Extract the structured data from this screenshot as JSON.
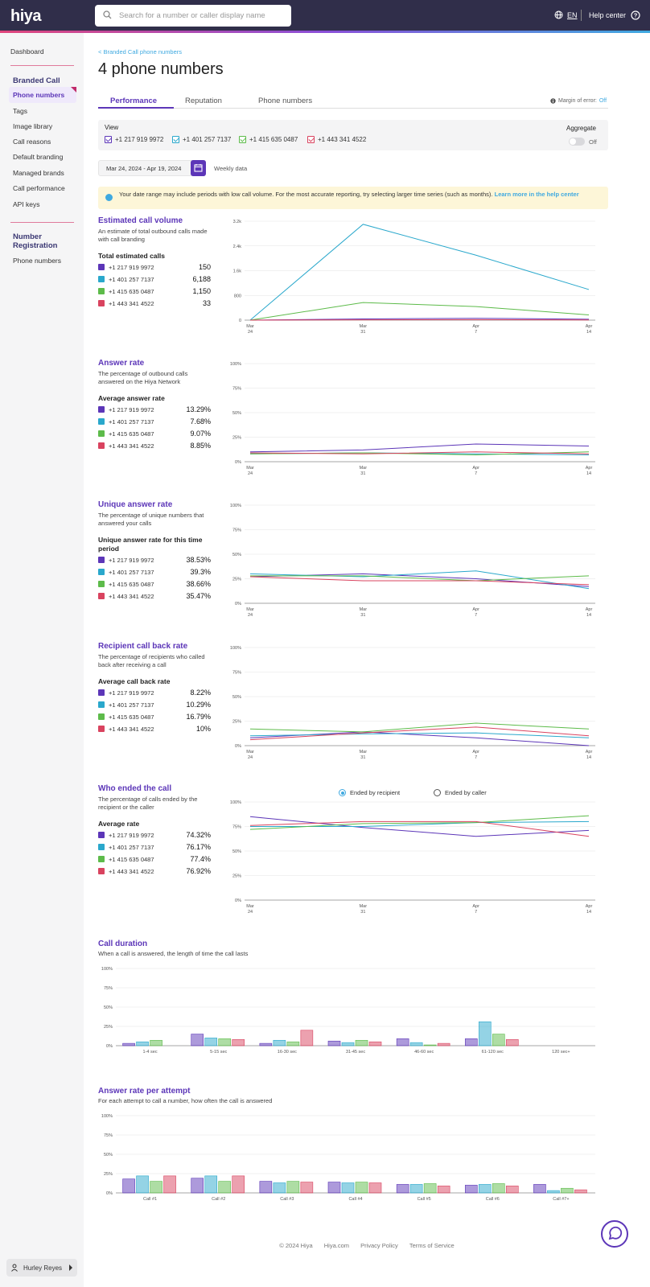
{
  "header": {
    "logo": "hiya",
    "search_placeholder": "Search for a number or caller display name",
    "lang": "EN",
    "help": "Help center"
  },
  "sidebar": {
    "dashboard": "Dashboard",
    "branded_call": "Branded Call",
    "items": [
      "Phone numbers",
      "Tags",
      "Image library",
      "Call reasons",
      "Default branding",
      "Managed brands",
      "Call performance",
      "API keys"
    ],
    "number_registration": "Number Registration",
    "nr_items": [
      "Phone numbers"
    ],
    "user": "Hurley Reyes"
  },
  "page": {
    "breadcrumb": "< Branded Call phone numbers",
    "title": "4 phone numbers",
    "tabs": [
      "Performance",
      "Reputation",
      "Phone numbers"
    ],
    "margin_label": "Margin of error:",
    "margin_value": "Off",
    "view_label": "View",
    "aggregate_label": "Aggregate",
    "aggregate_state": "Off",
    "date_range": "Mar 24, 2024 - Apr 19, 2024",
    "granularity": "Weekly data",
    "alert_text": "Your date range may include periods with low call volume. For the most accurate reporting, try selecting larger time series (such as months).",
    "alert_link": "Learn more in the help center",
    "footer": [
      "© 2024 Hiya",
      "Hiya.com",
      "Privacy Policy",
      "Terms of Service"
    ]
  },
  "numbers": [
    "+1 217 919 9972",
    "+1 401 257 7137",
    "+1 415 635 0487",
    "+1 443 341 4522"
  ],
  "colors": {
    "purple": "#5c36b8",
    "blue": "#2aa8cc",
    "green": "#5dbb4a",
    "red": "#d9435f",
    "accent": "#5c36b8"
  },
  "sections": [
    {
      "title": "Estimated call volume",
      "desc": "An estimate of total outbound calls made with call branding",
      "sub": "Total estimated calls",
      "values": [
        "150",
        "6,188",
        "1,150",
        "33"
      ]
    },
    {
      "title": "Answer rate",
      "desc": "The percentage of outbound calls answered on the Hiya Network",
      "sub": "Average answer rate",
      "values": [
        "13.29%",
        "7.68%",
        "9.07%",
        "8.85%"
      ]
    },
    {
      "title": "Unique answer rate",
      "desc": "The percentage of unique numbers that answered your calls",
      "sub": "Unique answer rate for this time period",
      "values": [
        "38.53%",
        "39.3%",
        "38.66%",
        "35.47%"
      ]
    },
    {
      "title": "Recipient call back rate",
      "desc": "The percentage of recipients who called back after receiving a call",
      "sub": "Average call back rate",
      "values": [
        "8.22%",
        "10.29%",
        "16.79%",
        "10%"
      ]
    },
    {
      "title": "Who ended the call",
      "desc": "The percentage of calls ended by the recipient or the caller",
      "sub": "Average rate",
      "values": [
        "74.32%",
        "76.17%",
        "77.4%",
        "76.92%"
      ]
    }
  ],
  "radio": {
    "option1": "Ended by recipient",
    "option2": "Ended by caller"
  },
  "duration": {
    "title": "Call duration",
    "desc": "When a call is answered, the length of time the call lasts"
  },
  "attempt": {
    "title": "Answer rate per attempt",
    "desc": "For each attempt to call a number, how often the call is answered"
  },
  "chart_data": [
    {
      "type": "line",
      "title": "Estimated call volume",
      "x": [
        "Mar 24",
        "Mar 31",
        "Apr 7",
        "Apr 14"
      ],
      "yticks": [
        "0",
        "800",
        "1.6k",
        "2.4k",
        "3.2k"
      ],
      "ylim": [
        0,
        3200
      ],
      "series": [
        {
          "name": "+1 217 919 9972",
          "values": [
            0,
            40,
            60,
            30
          ]
        },
        {
          "name": "+1 401 257 7137",
          "values": [
            0,
            3100,
            2100,
            990
          ]
        },
        {
          "name": "+1 415 635 0487",
          "values": [
            0,
            570,
            440,
            170
          ]
        },
        {
          "name": "+1 443 341 4522",
          "values": [
            0,
            10,
            15,
            8
          ]
        }
      ]
    },
    {
      "type": "line",
      "title": "Answer rate",
      "x": [
        "Mar 24",
        "Mar 31",
        "Apr 7",
        "Apr 14"
      ],
      "yticks": [
        "0%",
        "25%",
        "50%",
        "75%",
        "100%"
      ],
      "ylim": [
        0,
        100
      ],
      "series": [
        {
          "name": "+1 217 919 9972",
          "values": [
            10,
            12,
            18,
            16
          ]
        },
        {
          "name": "+1 401 257 7137",
          "values": [
            8,
            9,
            8,
            7
          ]
        },
        {
          "name": "+1 415 635 0487",
          "values": [
            8,
            9,
            7,
            10
          ]
        },
        {
          "name": "+1 443 341 4522",
          "values": [
            9,
            8,
            10,
            8
          ]
        }
      ]
    },
    {
      "type": "line",
      "title": "Unique answer rate",
      "x": [
        "Mar 24",
        "Mar 31",
        "Apr 7",
        "Apr 14"
      ],
      "yticks": [
        "0%",
        "25%",
        "50%",
        "75%",
        "100%"
      ],
      "ylim": [
        0,
        100
      ],
      "series": [
        {
          "name": "+1 217 919 9972",
          "values": [
            27,
            30,
            25,
            17
          ]
        },
        {
          "name": "+1 401 257 7137",
          "values": [
            30,
            27,
            33,
            15
          ]
        },
        {
          "name": "+1 415 635 0487",
          "values": [
            28,
            28,
            23,
            28
          ]
        },
        {
          "name": "+1 443 341 4522",
          "values": [
            27,
            23,
            23,
            19
          ]
        }
      ]
    },
    {
      "type": "line",
      "title": "Recipient call back rate",
      "x": [
        "Mar 24",
        "Mar 31",
        "Apr 7",
        "Apr 14"
      ],
      "yticks": [
        "0%",
        "25%",
        "50%",
        "75%",
        "100%"
      ],
      "ylim": [
        0,
        100
      ],
      "series": [
        {
          "name": "+1 217 919 9972",
          "values": [
            8,
            14,
            8,
            0
          ]
        },
        {
          "name": "+1 401 257 7137",
          "values": [
            10,
            12,
            13,
            8
          ]
        },
        {
          "name": "+1 415 635 0487",
          "values": [
            17,
            14,
            23,
            17
          ]
        },
        {
          "name": "+1 443 341 4522",
          "values": [
            6,
            13,
            19,
            10
          ]
        }
      ]
    },
    {
      "type": "line",
      "title": "Who ended the call",
      "x": [
        "Mar 24",
        "Mar 31",
        "Apr 7",
        "Apr 14"
      ],
      "yticks": [
        "0%",
        "25%",
        "50%",
        "75%",
        "100%"
      ],
      "ylim": [
        0,
        100
      ],
      "series": [
        {
          "name": "+1 217 919 9972",
          "values": [
            85,
            74,
            65,
            71
          ]
        },
        {
          "name": "+1 401 257 7137",
          "values": [
            75,
            75,
            79,
            80
          ]
        },
        {
          "name": "+1 415 635 0487",
          "values": [
            72,
            78,
            79,
            86
          ]
        },
        {
          "name": "+1 443 341 4522",
          "values": [
            76,
            80,
            80,
            65
          ]
        }
      ]
    },
    {
      "type": "bar",
      "title": "Call duration",
      "categories": [
        "1-4 sec",
        "5-15 sec",
        "16-30 sec",
        "31-45 sec",
        "46-60 sec",
        "61-120 sec",
        "120 sec+"
      ],
      "yticks": [
        "0%",
        "25%",
        "50%",
        "75%",
        "100%"
      ],
      "ylim": [
        0,
        100
      ],
      "series": [
        {
          "name": "+1 217 919 9972",
          "values": [
            3,
            15,
            3,
            6,
            9,
            9,
            0
          ]
        },
        {
          "name": "+1 401 257 7137",
          "values": [
            5,
            10,
            7,
            4,
            4,
            31,
            0
          ]
        },
        {
          "name": "+1 415 635 0487",
          "values": [
            7,
            9,
            5,
            7,
            1,
            15,
            0
          ]
        },
        {
          "name": "+1 443 341 4522",
          "values": [
            0,
            8,
            20,
            5,
            3,
            8,
            0
          ]
        }
      ]
    },
    {
      "type": "bar",
      "title": "Answer rate per attempt",
      "categories": [
        "Call #1",
        "Call #2",
        "Call #3",
        "Call #4",
        "Call #5",
        "Call #6",
        "Call #7+"
      ],
      "yticks": [
        "0%",
        "25%",
        "50%",
        "75%",
        "100%"
      ],
      "ylim": [
        0,
        100
      ],
      "series": [
        {
          "name": "+1 217 919 9972",
          "values": [
            18,
            19,
            15,
            14,
            11,
            10,
            11
          ]
        },
        {
          "name": "+1 401 257 7137",
          "values": [
            22,
            22,
            13,
            13,
            11,
            11,
            3
          ]
        },
        {
          "name": "+1 415 635 0487",
          "values": [
            15,
            15,
            15,
            14,
            12,
            12,
            6
          ]
        },
        {
          "name": "+1 443 341 4522",
          "values": [
            22,
            22,
            14,
            13,
            9,
            9,
            4
          ]
        }
      ]
    }
  ]
}
